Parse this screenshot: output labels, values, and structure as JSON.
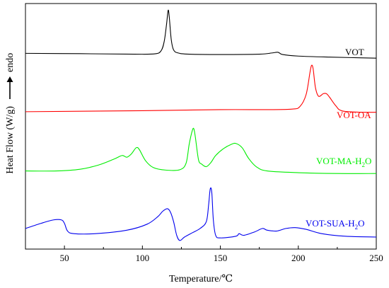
{
  "chart_data": {
    "type": "line",
    "title": "",
    "xlabel": "Temperature/℃",
    "ylabel": "Heat Flow (W/g)",
    "ylabel_arrow_text": "endo",
    "xlim": [
      25,
      250
    ],
    "xticks": [
      50,
      100,
      150,
      200,
      250
    ],
    "yticks": [],
    "grid": false,
    "legend": "inline labels beside each curve",
    "series": [
      {
        "name": "VOT",
        "label_parts": [
          {
            "t": "VOT",
            "sub": false
          }
        ],
        "color": "#000000",
        "baseline": 0.0,
        "points": [
          [
            25,
            0.1
          ],
          [
            60,
            0.08
          ],
          [
            95,
            0.05
          ],
          [
            108,
            0.07
          ],
          [
            112,
            0.25
          ],
          [
            114,
            0.8
          ],
          [
            115.5,
            1.8
          ],
          [
            116.5,
            2.6
          ],
          [
            117.2,
            2.25
          ],
          [
            118.5,
            0.9
          ],
          [
            120,
            0.3
          ],
          [
            123,
            0.12
          ],
          [
            130,
            0.05
          ],
          [
            150,
            0.03
          ],
          [
            175,
            0.05
          ],
          [
            183,
            0.12
          ],
          [
            187,
            0.16
          ],
          [
            190,
            0.03
          ],
          [
            200,
            -0.06
          ],
          [
            220,
            -0.12
          ],
          [
            250,
            -0.18
          ]
        ]
      },
      {
        "name": "VOT-OA",
        "label_parts": [
          {
            "t": "VOT-OA",
            "sub": false
          }
        ],
        "color": "#ff0000",
        "baseline": -3.3,
        "points": [
          [
            25,
            0.0
          ],
          [
            100,
            0.06
          ],
          [
            150,
            0.12
          ],
          [
            180,
            0.12
          ],
          [
            196,
            0.15
          ],
          [
            201,
            0.3
          ],
          [
            205,
            1.0
          ],
          [
            207.5,
            2.3
          ],
          [
            208.5,
            2.7
          ],
          [
            209.5,
            2.5
          ],
          [
            211,
            1.4
          ],
          [
            213,
            0.9
          ],
          [
            216,
            1.05
          ],
          [
            218,
            1.05
          ],
          [
            220,
            0.85
          ],
          [
            224,
            0.35
          ],
          [
            228,
            0.05
          ],
          [
            240,
            -0.03
          ],
          [
            250,
            -0.03
          ]
        ]
      },
      {
        "name": "VOT-MA-H2O",
        "label_parts": [
          {
            "t": "VOT-MA-H",
            "sub": false
          },
          {
            "t": "2",
            "sub": true
          },
          {
            "t": "O",
            "sub": false
          }
        ],
        "color": "#00ee00",
        "baseline": -6.8,
        "points": [
          [
            25,
            0.05
          ],
          [
            45,
            0.05
          ],
          [
            60,
            0.15
          ],
          [
            72,
            0.4
          ],
          [
            82,
            0.75
          ],
          [
            87,
            0.95
          ],
          [
            90,
            0.85
          ],
          [
            93,
            1.05
          ],
          [
            96,
            1.4
          ],
          [
            98,
            1.3
          ],
          [
            102,
            0.65
          ],
          [
            107,
            0.25
          ],
          [
            115,
            0.1
          ],
          [
            124,
            0.12
          ],
          [
            128,
            0.5
          ],
          [
            130,
            1.6
          ],
          [
            132,
            2.4
          ],
          [
            133,
            2.5
          ],
          [
            134,
            2.0
          ],
          [
            136,
            0.7
          ],
          [
            138,
            0.45
          ],
          [
            141,
            0.3
          ],
          [
            144,
            0.55
          ],
          [
            147,
            0.95
          ],
          [
            152,
            1.35
          ],
          [
            157,
            1.6
          ],
          [
            160,
            1.65
          ],
          [
            164,
            1.4
          ],
          [
            168,
            0.8
          ],
          [
            173,
            0.3
          ],
          [
            180,
            0.05
          ],
          [
            200,
            -0.05
          ],
          [
            225,
            -0.1
          ],
          [
            250,
            -0.1
          ]
        ]
      },
      {
        "name": "VOT-SUA-H2O",
        "label_parts": [
          {
            "t": "VOT-SUA-H",
            "sub": false
          },
          {
            "t": "2",
            "sub": true
          },
          {
            "t": "O",
            "sub": false
          }
        ],
        "color": "#0000ee",
        "baseline": -10.2,
        "points": [
          [
            25,
            0.1
          ],
          [
            35,
            0.4
          ],
          [
            43,
            0.6
          ],
          [
            48,
            0.6
          ],
          [
            50,
            0.4
          ],
          [
            52,
            -0.05
          ],
          [
            56,
            -0.2
          ],
          [
            70,
            -0.2
          ],
          [
            90,
            0.0
          ],
          [
            103,
            0.35
          ],
          [
            110,
            0.8
          ],
          [
            113,
            1.1
          ],
          [
            116,
            1.25
          ],
          [
            118,
            1.05
          ],
          [
            120,
            0.5
          ],
          [
            122,
            -0.3
          ],
          [
            124,
            -0.6
          ],
          [
            127,
            -0.4
          ],
          [
            132,
            -0.15
          ],
          [
            137,
            0.1
          ],
          [
            141,
            0.5
          ],
          [
            142.5,
            1.5
          ],
          [
            143.5,
            2.4
          ],
          [
            144.5,
            2.2
          ],
          [
            145.5,
            0.6
          ],
          [
            147,
            -0.3
          ],
          [
            150,
            -0.45
          ],
          [
            160,
            -0.35
          ],
          [
            162,
            -0.2
          ],
          [
            165,
            -0.3
          ],
          [
            172,
            -0.1
          ],
          [
            177,
            0.1
          ],
          [
            180,
            0.0
          ],
          [
            186,
            -0.05
          ],
          [
            192,
            0.1
          ],
          [
            198,
            0.15
          ],
          [
            205,
            0.05
          ],
          [
            215,
            -0.2
          ],
          [
            230,
            -0.35
          ],
          [
            250,
            -0.4
          ]
        ]
      }
    ]
  }
}
